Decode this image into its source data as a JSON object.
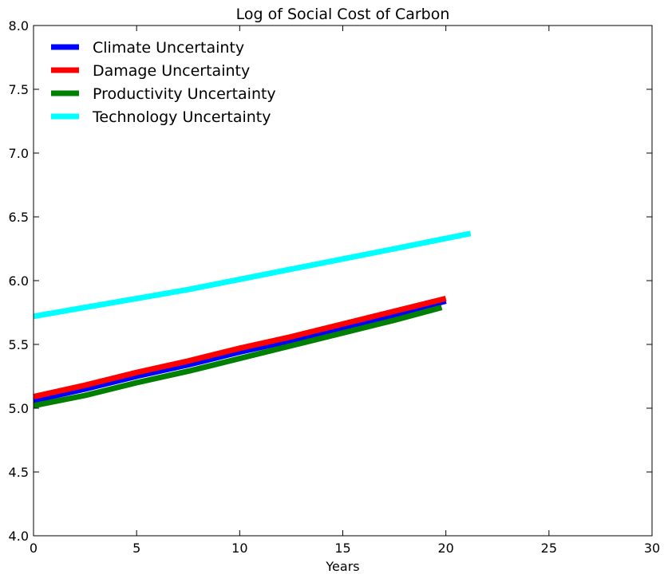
{
  "chart_data": {
    "type": "line",
    "title": "Log of Social Cost of Carbon",
    "xlabel": "Years",
    "ylabel": "",
    "xlim": [
      0,
      30
    ],
    "ylim": [
      4.0,
      8.0
    ],
    "x_ticks": [
      "0",
      "5",
      "10",
      "15",
      "20",
      "25",
      "30"
    ],
    "y_ticks": [
      "4.0",
      "4.5",
      "5.0",
      "5.5",
      "6.0",
      "6.5",
      "7.0",
      "7.5",
      "8.0"
    ],
    "grid": false,
    "legend_position": "top-left",
    "series": [
      {
        "name": "Climate Uncertainty",
        "color": "#0000ff",
        "x": [
          0,
          2.5,
          5,
          7.5,
          10,
          12.5,
          15,
          17.5,
          20
        ],
        "y": [
          5.06,
          5.15,
          5.25,
          5.34,
          5.44,
          5.53,
          5.63,
          5.73,
          5.84
        ]
      },
      {
        "name": "Damage Uncertainty",
        "color": "#ff0000",
        "x": [
          0,
          2.5,
          5,
          7.5,
          10,
          12.5,
          15,
          17.5,
          20
        ],
        "y": [
          5.09,
          5.18,
          5.28,
          5.37,
          5.47,
          5.56,
          5.66,
          5.76,
          5.86
        ]
      },
      {
        "name": "Productivity Uncertainty",
        "color": "#008000",
        "x": [
          0,
          2.5,
          5,
          7.5,
          10,
          12.5,
          15,
          17.5,
          19.8
        ],
        "y": [
          5.02,
          5.1,
          5.2,
          5.29,
          5.39,
          5.49,
          5.59,
          5.69,
          5.79
        ]
      },
      {
        "name": "Technology Uncertainty",
        "color": "#00ffff",
        "x": [
          0,
          2.5,
          5,
          7.5,
          10,
          12.5,
          15,
          17.5,
          21.2
        ],
        "y": [
          5.72,
          5.79,
          5.86,
          5.93,
          6.01,
          6.09,
          6.17,
          6.25,
          6.37
        ]
      }
    ]
  }
}
